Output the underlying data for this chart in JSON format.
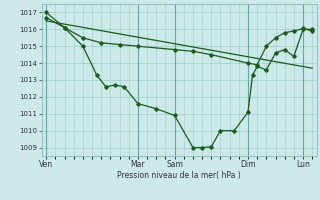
{
  "bg_color": "#cce8e8",
  "grid_color": "#99cccc",
  "line_color": "#1a5c1a",
  "marker_color": "#1a5c1a",
  "xlabel": "Pression niveau de la mer( hPa )",
  "ylim": [
    1008.5,
    1017.5
  ],
  "yticks": [
    1009,
    1010,
    1011,
    1012,
    1013,
    1014,
    1015,
    1016,
    1017
  ],
  "x_day_labels": [
    "Ven",
    "Mar",
    "Sam",
    "Dim",
    "Lun"
  ],
  "x_day_positions": [
    0,
    10,
    14,
    22,
    28
  ],
  "xlim": [
    -0.5,
    29.5
  ],
  "line1_x": [
    0,
    2,
    4,
    5.5,
    6.5,
    7.5,
    8.5,
    10,
    12,
    14,
    16,
    17,
    18,
    19,
    20.5,
    22,
    22.5,
    23,
    24,
    25,
    26,
    27,
    28,
    29
  ],
  "line1_y": [
    1017.0,
    1016.1,
    1015.0,
    1013.3,
    1012.6,
    1012.7,
    1012.6,
    1011.6,
    1011.3,
    1010.9,
    1009.0,
    1009.0,
    1009.05,
    1010.0,
    1010.0,
    1011.1,
    1013.3,
    1013.8,
    1013.6,
    1014.6,
    1014.8,
    1014.4,
    1016.0,
    1016.0
  ],
  "line2_x": [
    0,
    2,
    4,
    6,
    8,
    10,
    14,
    16,
    18,
    22,
    23,
    24,
    25,
    26,
    27,
    28,
    29
  ],
  "line2_y": [
    1016.7,
    1016.1,
    1015.5,
    1015.2,
    1015.1,
    1015.0,
    1014.8,
    1014.7,
    1014.5,
    1014.0,
    1013.9,
    1015.0,
    1015.5,
    1015.8,
    1015.9,
    1016.05,
    1015.9
  ],
  "line3_x": [
    0,
    29
  ],
  "line3_y": [
    1016.5,
    1013.7
  ]
}
